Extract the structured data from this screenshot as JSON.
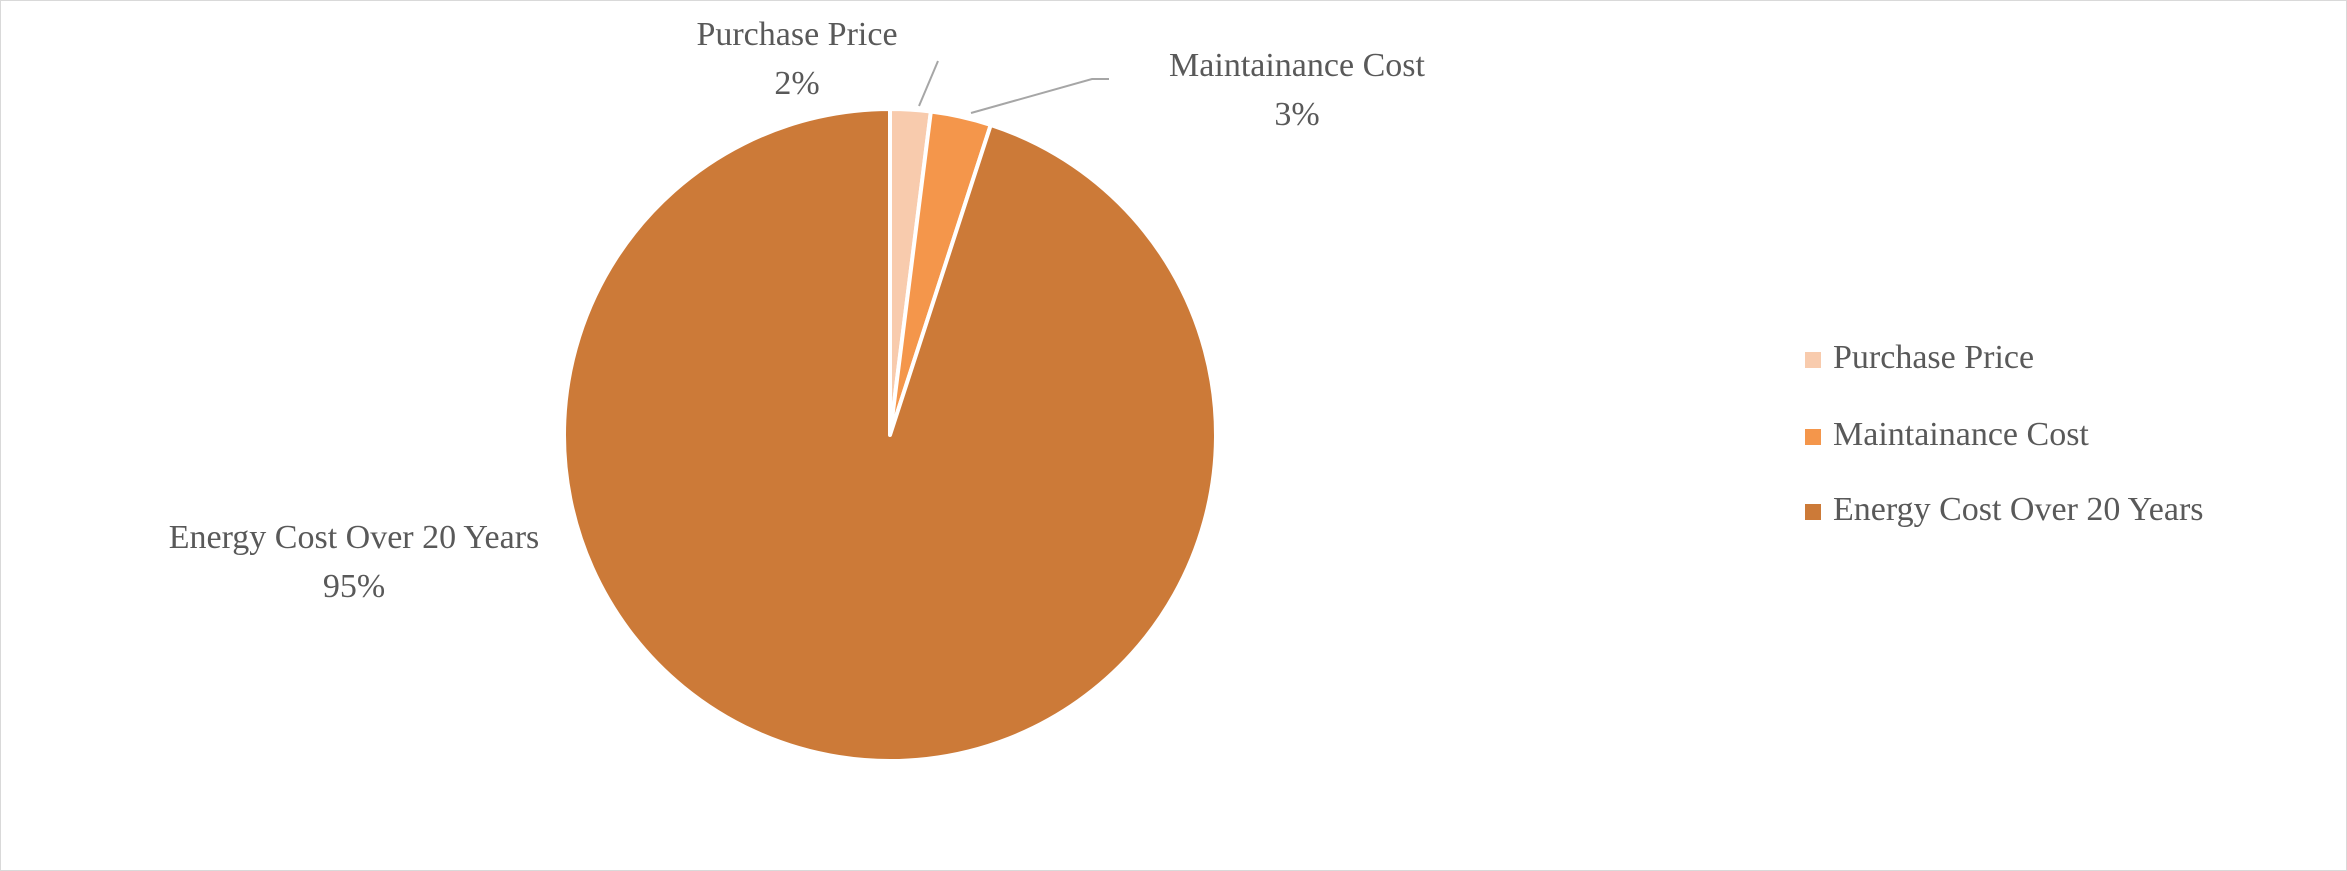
{
  "chart_data": {
    "type": "pie",
    "categories": [
      "Purchase Price",
      "Maintainance Cost",
      "Energy Cost Over 20 Years"
    ],
    "values": [
      2,
      3,
      95
    ],
    "value_labels": [
      "2%",
      "3%",
      "95%"
    ],
    "colors": [
      "#f8cbad",
      "#f4964b",
      "#cc7a38"
    ],
    "legend": "right"
  }
}
